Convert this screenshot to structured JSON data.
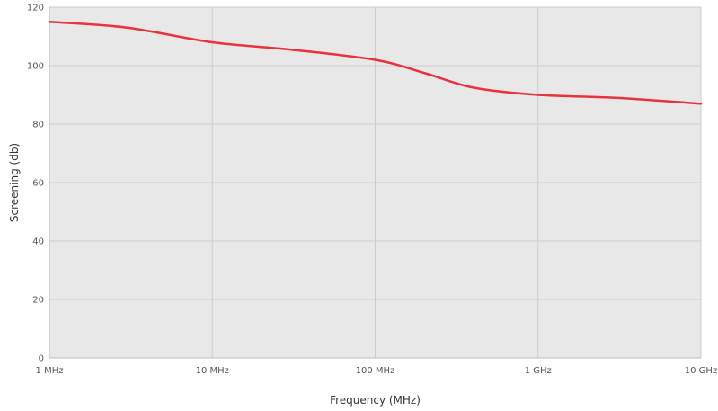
{
  "chart_data": {
    "type": "line",
    "title": "",
    "xlabel": "Frequency (MHz)",
    "ylabel": "Screening (db)",
    "x_scale": "log",
    "x_tick_values": [
      1,
      10,
      100,
      1000,
      10000
    ],
    "x_tick_labels": [
      "1 MHz",
      "10 MHz",
      "100 MHz",
      "1 GHz",
      "10 GHz"
    ],
    "ylim": [
      0,
      120
    ],
    "y_ticks": [
      0,
      20,
      40,
      60,
      80,
      100,
      120
    ],
    "grid": true,
    "legend": "none",
    "series": [
      {
        "color": "#e8323c",
        "x": [
          1,
          3,
          10,
          30,
          100,
          200,
          400,
          1000,
          3000,
          10000
        ],
        "y": [
          115,
          113,
          108,
          105.5,
          102,
          97.5,
          92.5,
          90,
          89,
          87
        ]
      }
    ]
  },
  "style": {
    "plot_background": "#e8e8e8",
    "grid_color": "#cccccc"
  }
}
